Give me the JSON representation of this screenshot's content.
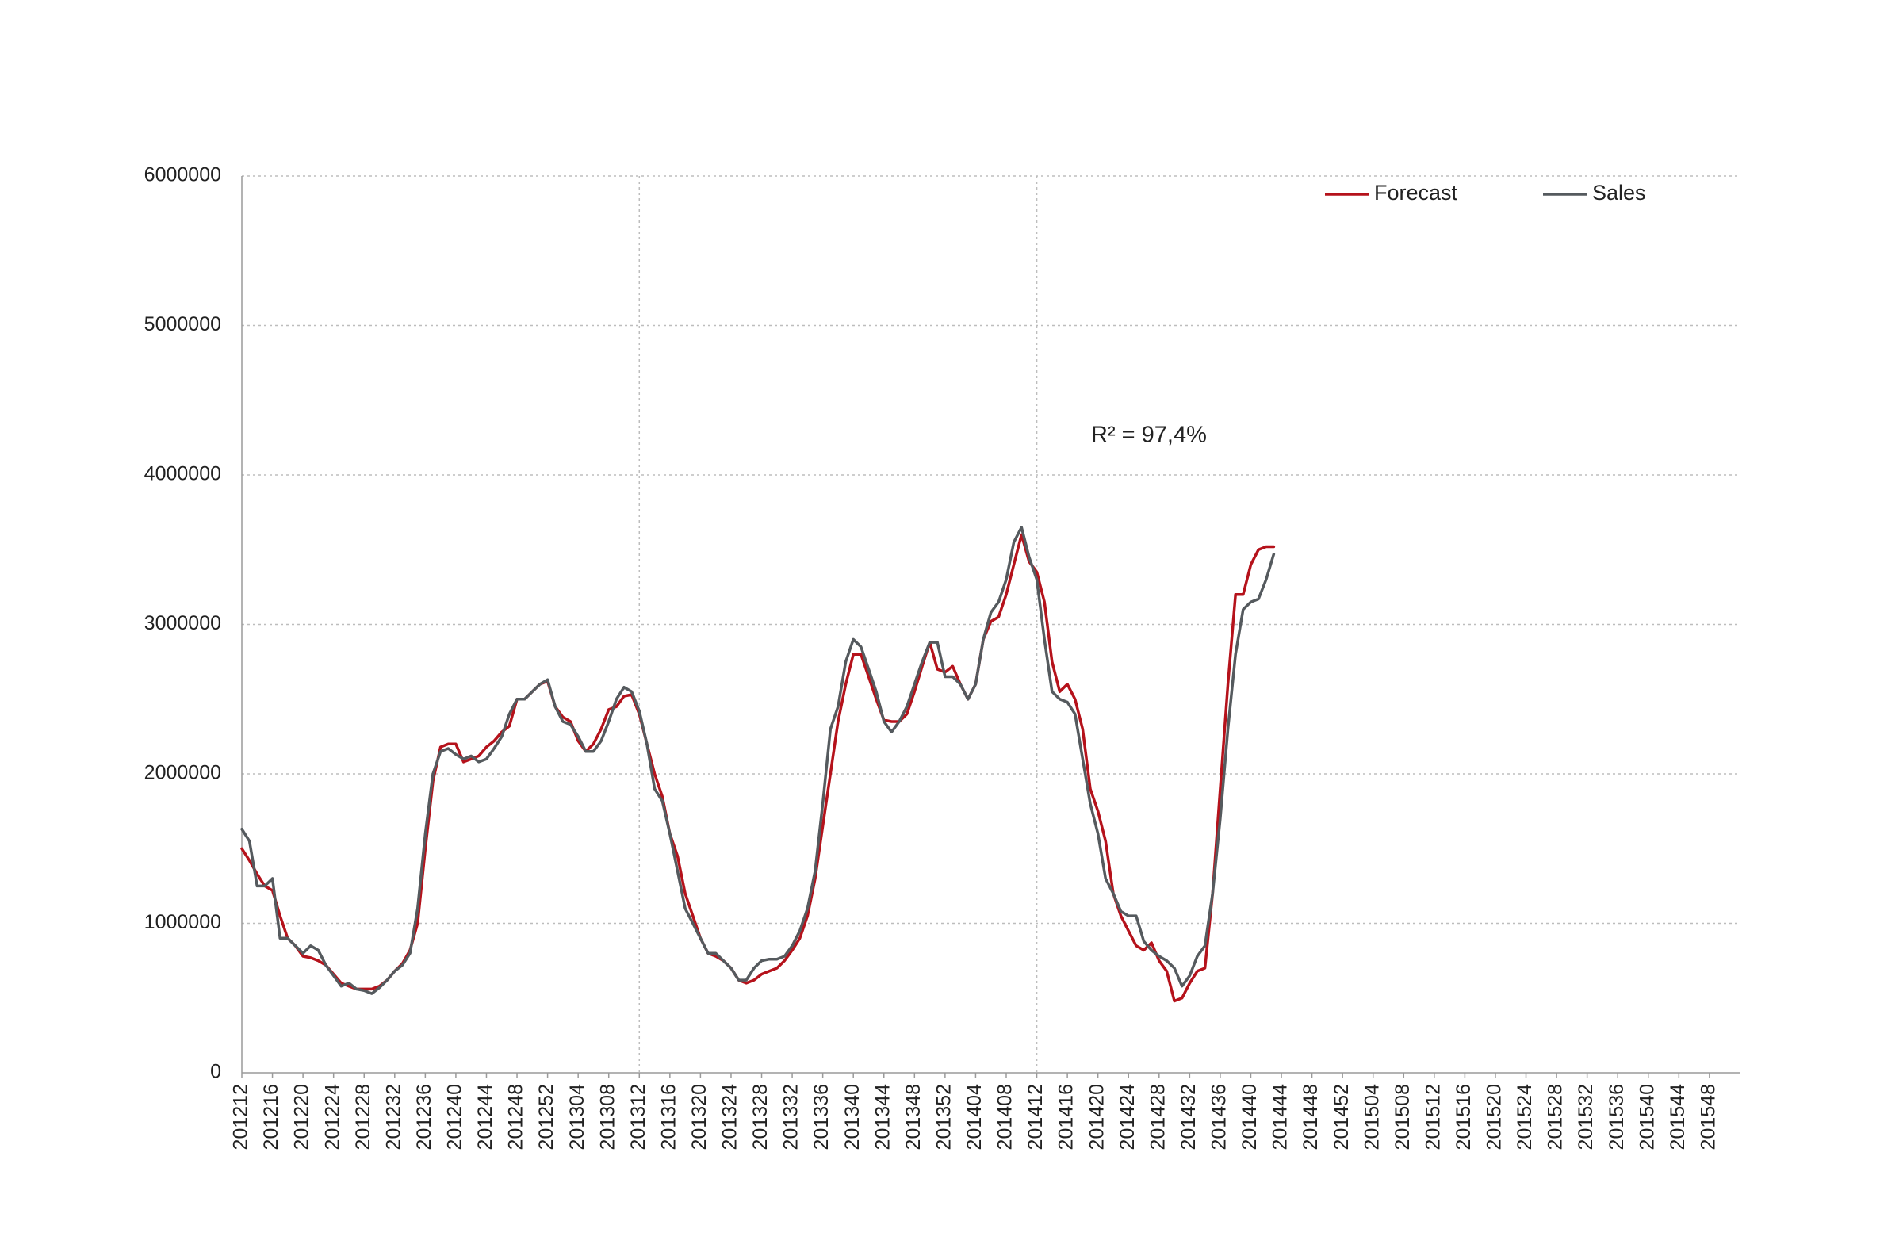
{
  "chart_data": {
    "type": "line",
    "annotation": "R² = 97,4%",
    "annotation_color": "#b5121b",
    "legend": "upper right",
    "grid": true,
    "xgrid_at": [
      "201312",
      "201412"
    ],
    "ylim": [
      0,
      6000000
    ],
    "yticks": [
      0,
      1000000,
      2000000,
      3000000,
      4000000,
      5000000,
      6000000
    ],
    "categories": [
      "201212",
      null,
      null,
      null,
      "201216",
      null,
      null,
      null,
      "201220",
      null,
      null,
      null,
      "201224",
      null,
      null,
      null,
      "201228",
      null,
      null,
      null,
      "201232",
      null,
      null,
      null,
      "201236",
      null,
      null,
      null,
      "201240",
      null,
      null,
      null,
      "201244",
      null,
      null,
      null,
      "201248",
      null,
      null,
      null,
      "201252",
      null,
      null,
      null,
      "201304",
      null,
      null,
      null,
      "201308",
      null,
      null,
      null,
      "201312",
      null,
      null,
      null,
      "201316",
      null,
      null,
      null,
      "201320",
      null,
      null,
      null,
      "201324",
      null,
      null,
      null,
      "201328",
      null,
      null,
      null,
      "201332",
      null,
      null,
      null,
      "201336",
      null,
      null,
      null,
      "201340",
      null,
      null,
      null,
      "201344",
      null,
      null,
      null,
      "201348",
      null,
      null,
      null,
      "201352",
      null,
      null,
      null,
      "201404",
      null,
      null,
      null,
      "201408",
      null,
      null,
      null,
      "201412",
      null,
      null,
      null,
      "201416",
      null,
      null,
      null,
      "201420",
      null,
      null,
      null,
      "201424",
      null,
      null,
      null,
      "201428",
      null,
      null,
      null,
      "201432",
      null,
      null,
      null,
      "201436",
      null,
      null,
      null,
      "201440",
      null,
      null,
      null,
      "201444",
      null,
      null,
      null,
      "201448",
      null,
      null,
      null,
      "201452",
      null,
      null,
      null,
      "201504",
      null,
      null,
      null,
      "201508",
      null,
      null,
      null,
      "201512",
      null,
      null,
      null,
      "201516",
      null,
      null,
      null,
      "201520",
      null,
      null,
      null,
      "201524",
      null,
      null,
      null,
      "201528",
      null,
      null,
      null,
      "201532",
      null,
      null,
      null,
      "201536",
      null,
      null,
      null,
      "201540",
      null,
      null,
      null,
      "201544",
      null,
      null,
      null,
      "201548",
      null,
      null,
      null,
      null
    ],
    "series": [
      {
        "name": "Forecast",
        "color": "#b5121b",
        "values": [
          1500000,
          1420000,
          1330000,
          1250000,
          1220000,
          1050000,
          900000,
          850000,
          780000,
          770000,
          750000,
          720000,
          660000,
          600000,
          580000,
          560000,
          560000,
          560000,
          580000,
          620000,
          680000,
          730000,
          820000,
          1000000,
          1500000,
          1950000,
          2180000,
          2200000,
          2200000,
          2080000,
          2100000,
          2120000,
          2180000,
          2220000,
          2280000,
          2320000,
          2500000,
          2500000,
          2550000,
          2600000,
          2620000,
          2450000,
          2380000,
          2350000,
          2220000,
          2150000,
          2200000,
          2300000,
          2430000,
          2450000,
          2520000,
          2530000,
          2400000,
          2200000,
          2000000,
          1850000,
          1600000,
          1450000,
          1200000,
          1050000,
          900000,
          800000,
          780000,
          750000,
          700000,
          620000,
          600000,
          620000,
          660000,
          680000,
          700000,
          750000,
          820000,
          900000,
          1050000,
          1300000,
          1650000,
          2000000,
          2350000,
          2600000,
          2800000,
          2800000,
          2650000,
          2500000,
          2360000,
          2350000,
          2350000,
          2400000,
          2550000,
          2720000,
          2880000,
          2700000,
          2680000,
          2720000,
          2600000,
          2500000,
          2600000,
          2900000,
          3020000,
          3050000,
          3200000,
          3400000,
          3600000,
          3420000,
          3350000,
          3150000,
          2750000,
          2550000,
          2600000,
          2500000,
          2300000,
          1900000,
          1750000,
          1550000,
          1200000,
          1050000,
          950000,
          850000,
          820000,
          870000,
          750000,
          680000,
          480000,
          500000,
          600000,
          680000,
          700000,
          1200000,
          1900000,
          2600000,
          3200000,
          3200000,
          3400000,
          3500000,
          3520000,
          3520000,
          null,
          null,
          null,
          null,
          null,
          null,
          null,
          null,
          null,
          null,
          null,
          null,
          null,
          null,
          null,
          null,
          null,
          null,
          null,
          null,
          null,
          null,
          null,
          null,
          null,
          null,
          null,
          null,
          null,
          null,
          null,
          null,
          null,
          null,
          null,
          null,
          null,
          null,
          null,
          null,
          null,
          null,
          null,
          null,
          null,
          null,
          null,
          null,
          null,
          null,
          null,
          null,
          null,
          null,
          null,
          null,
          null,
          null,
          null,
          null,
          null
        ]
      },
      {
        "name": "Sales",
        "color": "#555a5e",
        "values": [
          1630000,
          1550000,
          1250000,
          1250000,
          1300000,
          900000,
          900000,
          850000,
          800000,
          850000,
          820000,
          720000,
          650000,
          580000,
          600000,
          560000,
          550000,
          530000,
          570000,
          620000,
          680000,
          720000,
          800000,
          1100000,
          1600000,
          2000000,
          2150000,
          2170000,
          2130000,
          2100000,
          2120000,
          2080000,
          2100000,
          2170000,
          2250000,
          2400000,
          2500000,
          2500000,
          2550000,
          2600000,
          2630000,
          2450000,
          2350000,
          2330000,
          2250000,
          2150000,
          2150000,
          2220000,
          2350000,
          2500000,
          2580000,
          2550000,
          2420000,
          2200000,
          1900000,
          1820000,
          1600000,
          1350000,
          1100000,
          1000000,
          900000,
          800000,
          800000,
          750000,
          700000,
          620000,
          620000,
          700000,
          750000,
          760000,
          760000,
          780000,
          850000,
          950000,
          1100000,
          1350000,
          1800000,
          2300000,
          2450000,
          2750000,
          2900000,
          2850000,
          2700000,
          2550000,
          2350000,
          2280000,
          2350000,
          2450000,
          2600000,
          2750000,
          2880000,
          2880000,
          2650000,
          2650000,
          2600000,
          2500000,
          2600000,
          2900000,
          3080000,
          3150000,
          3300000,
          3550000,
          3650000,
          3450000,
          3300000,
          2900000,
          2550000,
          2500000,
          2480000,
          2400000,
          2100000,
          1800000,
          1600000,
          1300000,
          1200000,
          1080000,
          1050000,
          1050000,
          880000,
          820000,
          780000,
          750000,
          700000,
          580000,
          650000,
          780000,
          850000,
          1200000,
          1700000,
          2300000,
          2800000,
          3100000,
          3150000,
          3170000,
          3300000,
          3470000,
          null,
          null,
          null,
          null,
          null,
          null,
          null,
          null,
          null,
          null,
          null,
          null,
          null,
          null,
          null,
          null,
          null,
          null,
          null,
          null,
          null,
          null,
          null,
          null,
          null,
          null,
          null,
          null,
          null,
          null,
          null,
          null,
          null,
          null,
          null,
          null,
          null,
          null,
          null,
          null,
          null,
          null,
          null,
          null,
          null,
          null,
          null,
          null,
          null,
          null,
          null,
          null,
          null,
          null,
          null,
          null,
          null,
          null,
          null,
          null,
          null
        ]
      }
    ]
  }
}
